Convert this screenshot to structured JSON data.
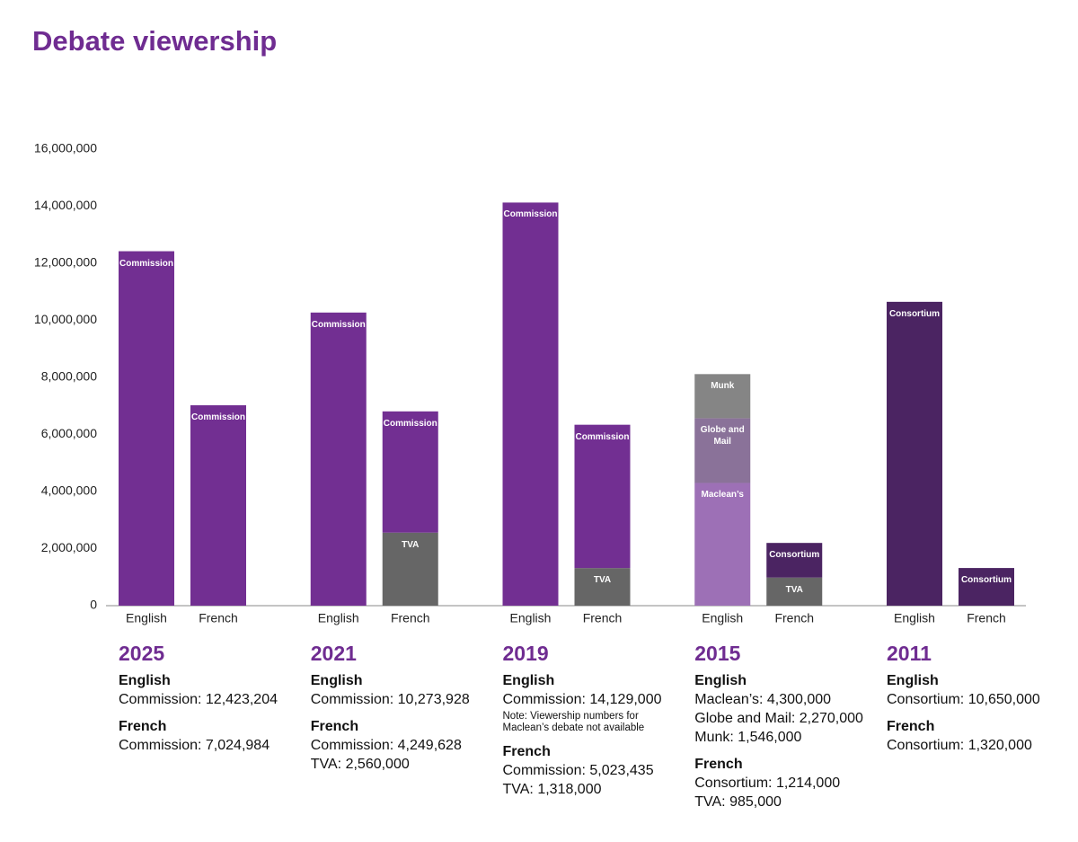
{
  "chart_data": {
    "type": "grouped_stacked_bar",
    "title": "Debate viewership",
    "ylim": [
      0,
      16000000
    ],
    "yticks": [
      0,
      {
        "value": 2000000,
        "label": "2,000,000"
      },
      {
        "value": 4000000,
        "label": "4,000,000"
      },
      {
        "value": 6000000,
        "label": "6,000,000"
      },
      {
        "value": 8000000,
        "label": "8,000,000"
      },
      {
        "value": 10000000,
        "label": "10,000,000"
      },
      {
        "value": 12000000,
        "label": "12,000,000"
      },
      {
        "value": 14000000,
        "label": "14,000,000"
      },
      {
        "value": 16000000,
        "label": "16,000,000"
      }
    ],
    "groups": [
      {
        "year": "2025",
        "bars": [
          {
            "language": "English",
            "segments": [
              {
                "name": "Commission",
                "color": "#722f92",
                "value": 12423204,
                "value_label": "Commission: 12,423,204"
              }
            ]
          },
          {
            "language": "French",
            "segments": [
              {
                "name": "Commission",
                "color": "#722f92",
                "value": 7024984,
                "value_label": "Commission: 7,024,984"
              }
            ]
          }
        ]
      },
      {
        "year": "2021",
        "bars": [
          {
            "language": "English",
            "segments": [
              {
                "name": "Commission",
                "color": "#722f92",
                "value": 10273928,
                "value_label": "Commission: 10,273,928"
              }
            ]
          },
          {
            "language": "French",
            "segments": [
              {
                "name": "TVA",
                "color": "#666666",
                "value": 2560000,
                "value_label": "TVA: 2,560,000"
              },
              {
                "name": "Commission",
                "color": "#722f92",
                "value": 4249628,
                "value_label": "Commission: 4,249,628"
              }
            ]
          }
        ]
      },
      {
        "year": "2019",
        "bars": [
          {
            "language": "English",
            "segments": [
              {
                "name": "Commission",
                "color": "#722f92",
                "value": 14129000,
                "value_label": "Commission: 14,129,000"
              }
            ],
            "note": "Note: Viewership numbers for Maclean’s debate not available"
          },
          {
            "language": "French",
            "segments": [
              {
                "name": "TVA",
                "color": "#666666",
                "value": 1318000,
                "value_label": "TVA: 1,318,000"
              },
              {
                "name": "Commission",
                "color": "#722f92",
                "value": 5023435,
                "value_label": "Commission: 5,023,435"
              }
            ]
          }
        ]
      },
      {
        "year": "2015",
        "bars": [
          {
            "language": "English",
            "segments": [
              {
                "name": "Maclean’s",
                "color": "#9d70b6",
                "value": 4300000,
                "value_label": "Maclean’s: 4,300,000"
              },
              {
                "name": "Globe and Mail",
                "color": "#8a7299",
                "value": 2270000,
                "value_label": "Globe and Mail: 2,270,000"
              },
              {
                "name": "Munk",
                "color": "#858585",
                "value": 1546000,
                "value_label": "Munk: 1,546,000"
              }
            ]
          },
          {
            "language": "French",
            "segments": [
              {
                "name": "TVA",
                "color": "#666666",
                "value": 985000,
                "value_label": "TVA: 985,000"
              },
              {
                "name": "Consortium",
                "color": "#4b2462",
                "value": 1214000,
                "value_label": "Consortium: 1,214,000"
              }
            ]
          }
        ]
      },
      {
        "year": "2011",
        "bars": [
          {
            "language": "English",
            "segments": [
              {
                "name": "Consortium",
                "color": "#4b2462",
                "value": 10650000,
                "value_label": "Consortium: 10,650,000"
              }
            ]
          },
          {
            "language": "French",
            "segments": [
              {
                "name": "Consortium",
                "color": "#4b2462",
                "value": 1320000,
                "value_label": "Consortium: 1,320,000"
              }
            ]
          }
        ]
      }
    ]
  }
}
